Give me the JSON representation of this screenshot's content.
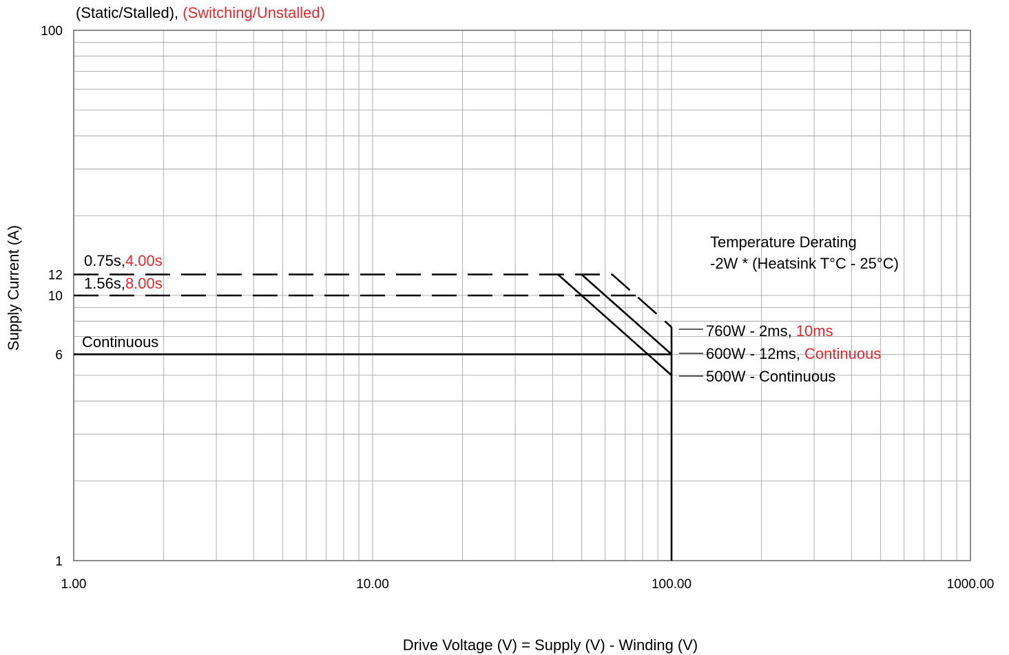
{
  "chart_data": {
    "type": "line",
    "subtitle": {
      "part1": "(Static/Stalled), ",
      "part2": "(Switching/Unstalled)"
    },
    "xlabel": "Drive Voltage (V) = Supply (V) - Winding (V)",
    "ylabel": "Supply Current (A)",
    "x_scale": "log",
    "y_scale": "log",
    "xlim": [
      1,
      1000
    ],
    "ylim": [
      1,
      100
    ],
    "grid": true,
    "x_ticks": [
      {
        "value": 1,
        "label": "1.00"
      },
      {
        "value": 10,
        "label": "10.00"
      },
      {
        "value": 100,
        "label": "100.00"
      },
      {
        "value": 1000,
        "label": "1000.00"
      }
    ],
    "y_ticks": [
      {
        "value": 1,
        "label": "1"
      },
      {
        "value": 6,
        "label": "6"
      },
      {
        "value": 10,
        "label": "10"
      },
      {
        "value": 12,
        "label": "12"
      },
      {
        "value": 100,
        "label": "100"
      }
    ],
    "series": [
      {
        "style": "dashed",
        "x": [
          1,
          63.3,
          100
        ],
        "y": [
          12,
          12,
          7.6
        ]
      },
      {
        "style": "dashed",
        "x": [
          1,
          81
        ],
        "y": [
          10,
          10
        ]
      },
      {
        "style": "solid",
        "x": [
          1,
          100
        ],
        "y": [
          6,
          6
        ]
      },
      {
        "style": "solid",
        "x": [
          41.7,
          100
        ],
        "y": [
          12,
          5
        ]
      },
      {
        "style": "solid",
        "x": [
          50,
          100
        ],
        "y": [
          12,
          6
        ]
      },
      {
        "style": "solid",
        "x": [
          100,
          100
        ],
        "y": [
          7.6,
          1
        ]
      }
    ],
    "annotations": {
      "dash12": {
        "black": "0.75s,",
        "red": "4.00s"
      },
      "dash10": {
        "black": "1.56s,",
        "red": "8.00s"
      },
      "continuous": "Continuous",
      "derating_title": "Temperature Derating",
      "derating_formula": "-2W * (Heatsink T°C - 25°C)",
      "label760": {
        "black": "760W - 2ms, ",
        "red": "10ms"
      },
      "label600": {
        "black": "600W - 12ms, ",
        "red": "Continuous"
      },
      "label500": {
        "black": "500W - Continuous",
        "red": ""
      }
    },
    "colors": {
      "primary": "#000000",
      "accent": "#e8262b",
      "grid": "#9a9a9a"
    }
  }
}
